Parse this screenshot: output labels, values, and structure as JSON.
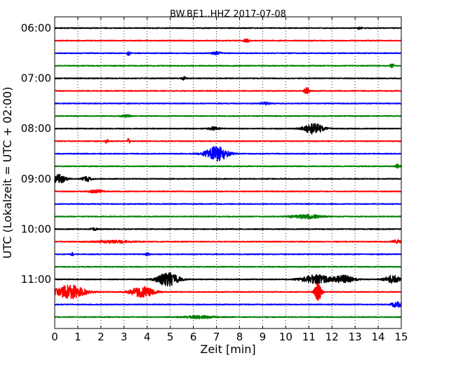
{
  "chart_data": {
    "type": "line",
    "title": "BW.BE1..HHZ 2017-07-08",
    "xlabel": "Zeit  [min]",
    "ylabel": "UTC (Lokalzeit = UTC + 02:00)",
    "xlim": [
      0,
      15
    ],
    "x_ticks": [
      "0",
      "1",
      "2",
      "3",
      "4",
      "5",
      "6",
      "7",
      "8",
      "9",
      "10",
      "11",
      "12",
      "13",
      "14",
      "15"
    ],
    "y_tick_labels": [
      "06:00",
      "07:00",
      "08:00",
      "09:00",
      "10:00",
      "11:00"
    ],
    "grid": "vertical dotted lines at each minute",
    "trace_interval_minutes": 15,
    "series": [
      {
        "start": "06:00",
        "color": "#000000",
        "bursts": [
          {
            "t": 13.2,
            "amp": 0.25,
            "dur": 0.2
          }
        ]
      },
      {
        "start": "06:15",
        "color": "#ff0000",
        "bursts": [
          {
            "t": 8.3,
            "amp": 0.35,
            "dur": 0.3
          }
        ]
      },
      {
        "start": "06:30",
        "color": "#0000ff",
        "bursts": [
          {
            "t": 3.2,
            "amp": 0.55,
            "dur": 0.15
          },
          {
            "t": 7.0,
            "amp": 0.3,
            "dur": 0.4
          }
        ]
      },
      {
        "start": "06:45",
        "color": "#008000",
        "bursts": [
          {
            "t": 14.6,
            "amp": 0.45,
            "dur": 0.2
          }
        ]
      },
      {
        "start": "07:00",
        "color": "#000000",
        "bursts": [
          {
            "t": 5.6,
            "amp": 0.4,
            "dur": 0.2
          }
        ]
      },
      {
        "start": "07:15",
        "color": "#ff0000",
        "bursts": [
          {
            "t": 10.9,
            "amp": 0.85,
            "dur": 0.2
          }
        ]
      },
      {
        "start": "07:30",
        "color": "#0000ff",
        "bursts": [
          {
            "t": 9.1,
            "amp": 0.3,
            "dur": 0.4
          }
        ]
      },
      {
        "start": "07:45",
        "color": "#008000",
        "bursts": [
          {
            "t": 3.1,
            "amp": 0.25,
            "dur": 0.4
          }
        ]
      },
      {
        "start": "08:00",
        "color": "#000000",
        "bursts": [
          {
            "t": 6.9,
            "amp": 0.35,
            "dur": 0.5
          },
          {
            "t": 11.2,
            "amp": 1.3,
            "dur": 0.8
          }
        ]
      },
      {
        "start": "08:15",
        "color": "#ff0000",
        "bursts": [
          {
            "t": 2.25,
            "amp": 0.6,
            "dur": 0.1
          },
          {
            "t": 3.2,
            "amp": 0.7,
            "dur": 0.1
          }
        ]
      },
      {
        "start": "08:30",
        "color": "#0000ff",
        "bursts": [
          {
            "t": 7.0,
            "amp": 1.7,
            "dur": 1.0
          }
        ]
      },
      {
        "start": "08:45",
        "color": "#008000",
        "bursts": [
          {
            "t": 14.85,
            "amp": 0.45,
            "dur": 0.2
          }
        ]
      },
      {
        "start": "09:00",
        "color": "#000000",
        "bursts": [
          {
            "t": 0.2,
            "amp": 1.0,
            "dur": 0.6
          },
          {
            "t": 1.4,
            "amp": 0.6,
            "dur": 0.4
          }
        ]
      },
      {
        "start": "09:15",
        "color": "#ff0000",
        "bursts": [
          {
            "t": 1.8,
            "amp": 0.35,
            "dur": 0.6
          }
        ]
      },
      {
        "start": "09:30",
        "color": "#0000ff",
        "bursts": []
      },
      {
        "start": "09:45",
        "color": "#008000",
        "bursts": [
          {
            "t": 10.9,
            "amp": 0.45,
            "dur": 1.4
          }
        ]
      },
      {
        "start": "10:00",
        "color": "#000000",
        "bursts": [
          {
            "t": 1.7,
            "amp": 0.25,
            "dur": 0.3
          }
        ]
      },
      {
        "start": "10:15",
        "color": "#ff0000",
        "bursts": [
          {
            "t": 2.5,
            "amp": 0.3,
            "dur": 1.6
          },
          {
            "t": 14.8,
            "amp": 0.4,
            "dur": 0.4
          }
        ]
      },
      {
        "start": "10:30",
        "color": "#0000ff",
        "bursts": [
          {
            "t": 0.75,
            "amp": 0.5,
            "dur": 0.1
          },
          {
            "t": 4.0,
            "amp": 0.3,
            "dur": 0.2
          }
        ]
      },
      {
        "start": "10:45",
        "color": "#008000",
        "bursts": []
      },
      {
        "start": "11:00",
        "color": "#000000",
        "bursts": [
          {
            "t": 4.9,
            "amp": 1.7,
            "dur": 0.9
          },
          {
            "t": 11.3,
            "amp": 1.1,
            "dur": 1.2
          },
          {
            "t": 12.5,
            "amp": 0.9,
            "dur": 0.9
          },
          {
            "t": 14.6,
            "amp": 1.0,
            "dur": 0.6
          }
        ]
      },
      {
        "start": "11:15",
        "color": "#ff0000",
        "bursts": [
          {
            "t": 0.65,
            "amp": 1.6,
            "dur": 1.3
          },
          {
            "t": 3.8,
            "amp": 1.3,
            "dur": 1.0
          },
          {
            "t": 11.4,
            "amp": 2.0,
            "dur": 0.3
          }
        ]
      },
      {
        "start": "11:30",
        "color": "#0000ff",
        "bursts": [
          {
            "t": 14.8,
            "amp": 0.6,
            "dur": 0.5
          }
        ]
      },
      {
        "start": "11:45",
        "color": "#008000",
        "bursts": [
          {
            "t": 6.3,
            "amp": 0.3,
            "dur": 1.4
          }
        ]
      }
    ]
  }
}
